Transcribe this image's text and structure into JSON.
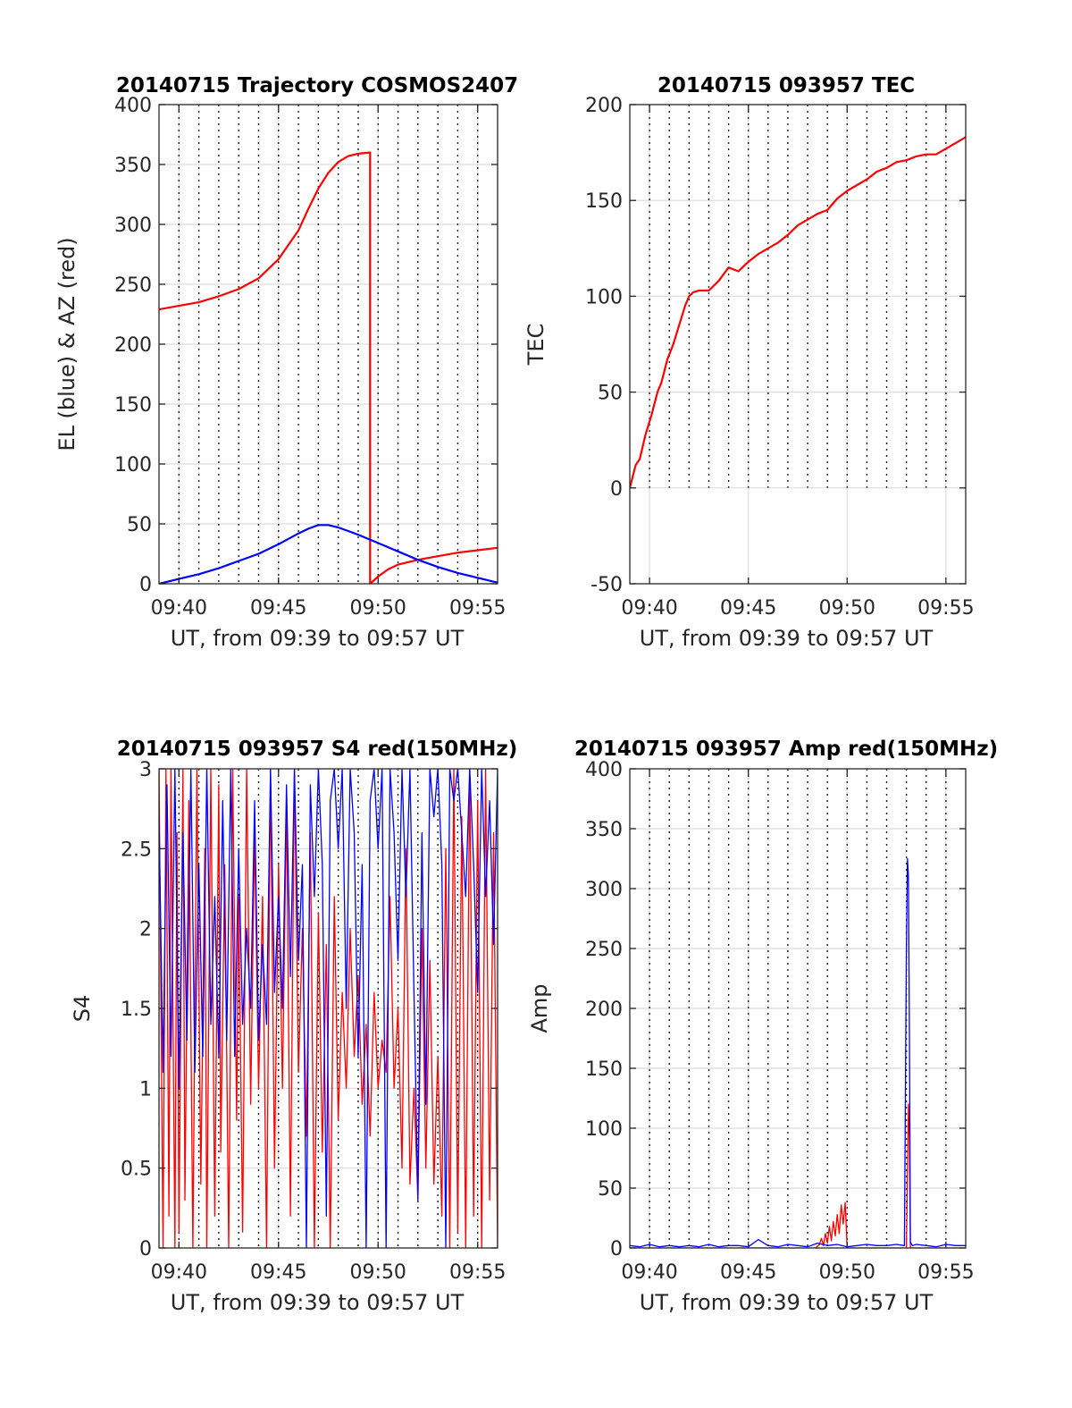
{
  "colors": {
    "red": "#ff0000",
    "blue": "#0000ff"
  },
  "chart_data": [
    {
      "id": "traj",
      "type": "line",
      "title": "20140715 Trajectory COSMOS2407",
      "xlabel": "UT, from 09:39 to 09:57 UT",
      "ylabel": "EL (blue) & AZ (red)",
      "xlim": [
        0,
        17
      ],
      "ylim": [
        0,
        400
      ],
      "xtick_labels": [
        "09:40",
        "09:45",
        "09:50",
        "09:55"
      ],
      "yticks": [
        0,
        50,
        100,
        150,
        200,
        250,
        300,
        350,
        400
      ],
      "grid": true,
      "series": [
        {
          "color": "red",
          "x": [
            0,
            1,
            2,
            3,
            4,
            5,
            6,
            7,
            7.5,
            8,
            8.5,
            9,
            9.5,
            10,
            10.6,
            10.6,
            11,
            11.5,
            12,
            12.5,
            13,
            14,
            15,
            16,
            17
          ],
          "y": [
            229,
            232,
            235,
            240,
            246,
            255,
            271,
            295,
            313,
            330,
            343,
            352,
            357,
            359,
            360,
            0,
            6,
            12,
            16,
            18,
            20,
            23,
            26,
            28,
            30
          ]
        },
        {
          "color": "blue",
          "x": [
            0,
            1,
            2,
            3,
            4,
            5,
            6,
            7,
            7.5,
            8,
            8.5,
            9,
            9.5,
            10,
            11,
            12,
            13,
            14,
            15,
            16,
            17
          ],
          "y": [
            0,
            4,
            8,
            13,
            19,
            25,
            33,
            42,
            46,
            49,
            49,
            47,
            44,
            41,
            34,
            27,
            20,
            14,
            9,
            5,
            1
          ]
        }
      ]
    },
    {
      "id": "tec",
      "type": "line",
      "title": "20140715 093957 TEC",
      "xlabel": "UT, from 09:39 to 09:57 UT",
      "ylabel": "TEC",
      "xlim": [
        0,
        17
      ],
      "ylim": [
        -50,
        200
      ],
      "xtick_labels": [
        "09:40",
        "09:45",
        "09:50",
        "09:55"
      ],
      "yticks": [
        -50,
        0,
        50,
        100,
        150,
        200
      ],
      "grid": true,
      "series": [
        {
          "color": "red",
          "x": [
            0,
            0.3,
            0.5,
            0.8,
            1.1,
            1.4,
            1.6,
            1.9,
            2.2,
            2.5,
            2.8,
            3.0,
            3.2,
            3.5,
            4.0,
            4.5,
            5.0,
            5.5,
            6.0,
            6.5,
            7.0,
            7.5,
            8.0,
            8.5,
            9.0,
            9.5,
            10.0,
            10.5,
            11.0,
            11.5,
            12.0,
            12.5,
            13.0,
            13.5,
            14.0,
            14.5,
            15.0,
            15.5,
            16.0,
            16.5,
            17.0
          ],
          "y": [
            0,
            12,
            15,
            28,
            38,
            50,
            55,
            67,
            75,
            85,
            95,
            100,
            102,
            103,
            103,
            108,
            115,
            113,
            118,
            122,
            125,
            128,
            132,
            137,
            140,
            143,
            145,
            151,
            155,
            158,
            161,
            165,
            167,
            170,
            171,
            173,
            174,
            174,
            177,
            180,
            183
          ]
        }
      ]
    },
    {
      "id": "s4",
      "type": "line",
      "title": "20140715 093957 S4 red(150MHz)",
      "xlabel": "UT, from 09:39 to 09:57 UT",
      "ylabel": "S4",
      "xlim": [
        0,
        17
      ],
      "ylim": [
        0,
        3
      ],
      "xtick_labels": [
        "09:40",
        "09:45",
        "09:50",
        "09:55"
      ],
      "yticks": [
        0,
        0.5,
        1,
        1.5,
        2,
        2.5,
        3
      ],
      "ytick_labels": [
        "0",
        "0.5",
        "1",
        "1.5",
        "2",
        "2.5",
        "3"
      ],
      "grid": true,
      "series": [
        {
          "color": "red",
          "x": [
            0,
            0.2,
            0.35,
            0.5,
            0.6,
            0.8,
            0.9,
            1.0,
            1.2,
            1.3,
            1.5,
            1.7,
            1.9,
            2.1,
            2.3,
            2.4,
            2.6,
            2.8,
            3.0,
            3.1,
            3.3,
            3.5,
            3.7,
            3.9,
            4.0,
            4.2,
            4.4,
            4.6,
            4.8,
            5.0,
            5.2,
            5.4,
            5.6,
            5.8,
            6.0,
            6.2,
            6.4,
            6.6,
            6.8,
            7.0,
            7.2,
            7.4,
            7.6,
            7.8,
            8.0,
            8.2,
            8.4,
            8.6,
            8.8,
            9.0,
            9.2,
            9.4,
            9.6,
            9.8,
            10.0,
            10.2,
            10.4,
            10.6,
            10.8,
            11.0,
            11.2,
            11.4,
            11.6,
            11.8,
            12.0,
            12.2,
            12.4,
            12.6,
            12.8,
            13.0,
            13.2,
            13.4,
            13.6,
            13.8,
            14.0,
            14.2,
            14.4,
            14.6,
            14.8,
            15.0,
            15.2,
            15.4,
            15.6,
            15.8,
            16.0,
            16.2,
            16.4,
            16.6,
            16.8,
            17.0
          ],
          "y": [
            3,
            0,
            3,
            0.2,
            3,
            0,
            2.6,
            0.1,
            3,
            0.3,
            2.8,
            0,
            3,
            0.4,
            2.5,
            0,
            3,
            0.2,
            2.9,
            0.6,
            2.4,
            0,
            3,
            0.8,
            2.2,
            0.1,
            3,
            0.9,
            2.6,
            1.0,
            2.2,
            0,
            3,
            0.5,
            2.4,
            1.0,
            2.8,
            0.2,
            3,
            1.1,
            2.0,
            0.7,
            2.6,
            0,
            2.1,
            0.6,
            1.9,
            0,
            2.2,
            0.8,
            1.6,
            1.0,
            2.0,
            1.2,
            1.7,
            0.9,
            1.4,
            0.7,
            1.6,
            1.0,
            1.3,
            1.1,
            2.2,
            1.0,
            1.5,
            0.5,
            2.5,
            0.4,
            1.0,
            0.3,
            2.0,
            0.5,
            1.8,
            0.4,
            1.2,
            0.2,
            2.5,
            0,
            3,
            0.1,
            2.7,
            0,
            3,
            0.2,
            2.8,
            0,
            3,
            0.3,
            2.6,
            0
          ]
        },
        {
          "color": "blue",
          "x": [
            0,
            0.2,
            0.4,
            0.6,
            0.8,
            1.0,
            1.2,
            1.4,
            1.6,
            1.8,
            2.0,
            2.2,
            2.4,
            2.6,
            2.8,
            3.0,
            3.2,
            3.4,
            3.6,
            3.8,
            4.0,
            4.2,
            4.4,
            4.6,
            4.8,
            5.0,
            5.2,
            5.4,
            5.6,
            5.8,
            6.0,
            6.2,
            6.4,
            6.6,
            6.8,
            7.0,
            7.2,
            7.4,
            7.6,
            7.8,
            8.0,
            8.2,
            8.4,
            8.6,
            8.8,
            9.0,
            9.2,
            9.4,
            9.6,
            9.8,
            10.0,
            10.2,
            10.4,
            10.6,
            10.8,
            11.0,
            11.2,
            11.4,
            11.6,
            11.8,
            12.0,
            12.2,
            12.4,
            12.6,
            12.8,
            13.0,
            13.2,
            13.4,
            13.6,
            13.8,
            14.0,
            14.2,
            14.4,
            14.6,
            14.8,
            15.0,
            15.2,
            15.4,
            15.6,
            15.8,
            16.0,
            16.2,
            16.4,
            16.6,
            16.8,
            17.0
          ],
          "y": [
            2.7,
            1.1,
            2.9,
            1.2,
            3,
            1.0,
            2.6,
            1.3,
            3,
            1.1,
            2.4,
            1.2,
            3,
            1.4,
            2.2,
            1.2,
            2.8,
            1.3,
            3,
            1.2,
            2.5,
            1.4,
            2.0,
            1.5,
            2.8,
            1.3,
            1.9,
            1.4,
            3,
            1.6,
            2.2,
            1.5,
            2.9,
            1.7,
            3,
            1.8,
            2.4,
            0,
            2.9,
            2.2,
            3,
            2.4,
            0.2,
            2.8,
            3,
            2.5,
            3,
            1.5,
            3,
            2.6,
            1.2,
            2.4,
            0,
            2.8,
            3,
            2.5,
            3,
            0,
            3,
            2.6,
            1.8,
            3,
            2.2,
            3,
            1.6,
            0.3,
            2.6,
            0.9,
            3,
            2.7,
            3,
            2.4,
            0,
            3,
            2.8,
            3,
            2.6,
            2.2,
            3,
            2.4,
            1.6,
            3,
            2.2,
            2.8,
            1.9,
            3
          ]
        }
      ]
    },
    {
      "id": "amp",
      "type": "line",
      "title": "20140715 093957 Amp red(150MHz)",
      "xlabel": "UT, from 09:39 to 09:57 UT",
      "ylabel": "Amp",
      "xlim": [
        0,
        17
      ],
      "ylim": [
        0,
        400
      ],
      "xtick_labels": [
        "09:40",
        "09:45",
        "09:50",
        "09:55"
      ],
      "yticks": [
        0,
        50,
        100,
        150,
        200,
        250,
        300,
        350,
        400
      ],
      "grid": true,
      "series": [
        {
          "color": "red",
          "x": [
            0,
            9.4,
            9.6,
            9.7,
            9.8,
            9.9,
            10.0,
            10.1,
            10.2,
            10.3,
            10.4,
            10.5,
            10.6,
            10.7,
            10.8,
            10.9,
            11.0,
            13.4,
            14.0,
            14.05,
            14.1,
            14.15,
            14.2,
            14.3,
            17.0
          ],
          "y": [
            0,
            0,
            3,
            8,
            2,
            12,
            4,
            18,
            6,
            22,
            10,
            28,
            12,
            36,
            20,
            38,
            0,
            0,
            0,
            60,
            120,
            90,
            0,
            0,
            0
          ]
        },
        {
          "color": "blue",
          "x": [
            0,
            0.5,
            1.0,
            1.5,
            2.0,
            2.5,
            3.0,
            3.5,
            4.0,
            4.5,
            5.0,
            5.5,
            6.0,
            6.5,
            7.0,
            7.5,
            8.0,
            8.5,
            9.0,
            9.5,
            10.0,
            10.5,
            11.0,
            11.5,
            12.0,
            12.5,
            13.0,
            13.5,
            13.9,
            14.0,
            14.05,
            14.1,
            14.15,
            14.2,
            14.3,
            14.5,
            15.0,
            15.5,
            16.0,
            16.5,
            17.0
          ],
          "y": [
            2,
            1,
            3,
            1,
            2,
            1,
            2,
            1,
            3,
            1,
            2,
            2,
            1,
            7,
            2,
            1,
            3,
            2,
            1,
            4,
            2,
            3,
            1,
            2,
            3,
            2,
            2,
            3,
            2,
            250,
            325,
            310,
            180,
            5,
            2,
            3,
            2,
            1,
            3,
            2,
            2
          ]
        }
      ]
    }
  ]
}
